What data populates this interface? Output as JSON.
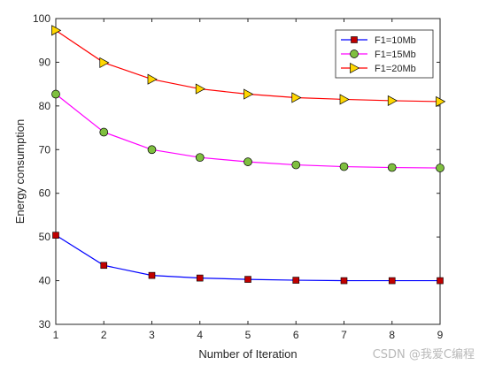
{
  "chart_data": {
    "type": "line",
    "x": [
      1,
      2,
      3,
      4,
      5,
      6,
      7,
      8,
      9
    ],
    "series": [
      {
        "name": "F1=10Mb",
        "color": "#0000ff",
        "marker": "square",
        "marker_color": "#c00000",
        "values": [
          50.4,
          43.5,
          41.2,
          40.6,
          40.3,
          40.1,
          40.0,
          40.0,
          40.0
        ]
      },
      {
        "name": "F1=15Mb",
        "color": "#ff00ff",
        "marker": "circle",
        "marker_color": "#7fbf3f",
        "values": [
          82.7,
          74.0,
          70.0,
          68.2,
          67.2,
          66.5,
          66.1,
          65.9,
          65.8
        ]
      },
      {
        "name": "F1=20Mb",
        "color": "#ff0000",
        "marker": "triangle-right",
        "marker_color": "#ffd700",
        "values": [
          97.3,
          89.9,
          86.1,
          83.9,
          82.7,
          81.9,
          81.5,
          81.2,
          81.0
        ]
      }
    ],
    "xlabel": "Number of Iteration",
    "ylabel": "Energy consumption",
    "xlim": [
      1,
      9
    ],
    "ylim": [
      30,
      100
    ],
    "xticks": [
      "1",
      "2",
      "3",
      "4",
      "5",
      "6",
      "7",
      "8",
      "9"
    ],
    "yticks": [
      "30",
      "40",
      "50",
      "60",
      "70",
      "80",
      "90",
      "100"
    ],
    "grid": false,
    "legend_position": "top-right"
  },
  "watermark": "CSDN @我爱C编程"
}
